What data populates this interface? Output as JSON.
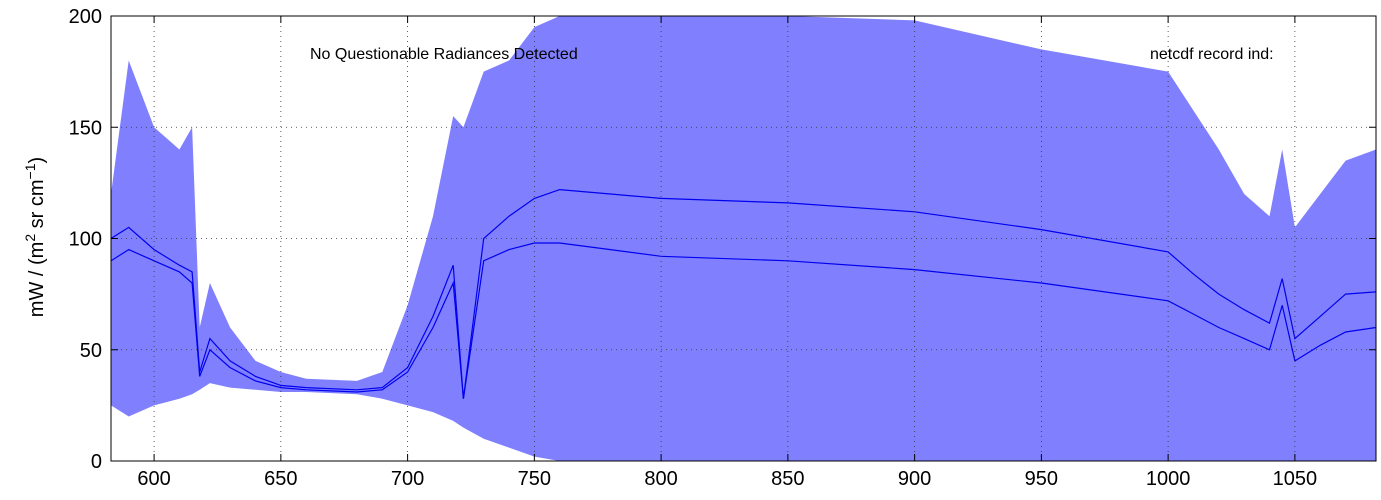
{
  "chart_data": {
    "type": "area",
    "title": "",
    "xlabel": "",
    "ylabel": "mW / (m² sr cm⁻¹)",
    "ylabel_parts": {
      "prefix": "mW / (m",
      "sup1": "2",
      "mid": " sr cm",
      "sup2": "−1",
      "suffix": ")"
    },
    "xlim": [
      583,
      1082
    ],
    "ylim": [
      0,
      200
    ],
    "x_ticks": [
      600,
      650,
      700,
      750,
      800,
      850,
      900,
      950,
      1000,
      1050
    ],
    "y_ticks": [
      0,
      50,
      100,
      150,
      200
    ],
    "grid": true,
    "annotations": {
      "left": "No Questionable Radiances Detected",
      "right": "netcdf record ind:"
    },
    "colors": {
      "band": "#8080ff",
      "line": "#0000ee",
      "grid": "#333333"
    },
    "series": [
      {
        "name": "",
        "kind": "envelope",
        "x": [
          583,
          590,
          600,
          610,
          615,
          618,
          622,
          630,
          640,
          650,
          660,
          680,
          690,
          700,
          710,
          718,
          722,
          730,
          740,
          750,
          760,
          780,
          800,
          850,
          900,
          950,
          1000,
          1020,
          1030,
          1040,
          1045,
          1050,
          1060,
          1070,
          1082
        ],
        "upper": [
          120,
          180,
          150,
          140,
          150,
          60,
          80,
          60,
          45,
          40,
          37,
          36,
          40,
          70,
          110,
          155,
          150,
          175,
          180,
          195,
          200,
          200,
          200,
          200,
          198,
          185,
          175,
          140,
          120,
          110,
          140,
          105,
          120,
          135,
          140
        ],
        "lower": [
          25,
          20,
          25,
          28,
          30,
          32,
          35,
          33,
          32,
          31,
          31,
          30,
          28,
          25,
          22,
          18,
          15,
          10,
          6,
          2,
          0,
          0,
          0,
          0,
          0,
          0,
          0,
          0,
          0,
          0,
          0,
          0,
          0,
          0,
          0
        ]
      },
      {
        "name": "",
        "kind": "line",
        "x": [
          583,
          590,
          600,
          610,
          615,
          618,
          622,
          630,
          640,
          650,
          660,
          680,
          690,
          700,
          710,
          718,
          722,
          730,
          740,
          750,
          760,
          780,
          800,
          850,
          900,
          950,
          1000,
          1010,
          1020,
          1030,
          1040,
          1045,
          1050,
          1060,
          1070,
          1082
        ],
        "y": [
          100,
          105,
          95,
          88,
          85,
          40,
          55,
          45,
          38,
          34,
          33,
          32,
          33,
          42,
          65,
          88,
          28,
          100,
          110,
          118,
          122,
          120,
          118,
          116,
          112,
          104,
          94,
          84,
          75,
          68,
          62,
          82,
          55,
          65,
          75,
          76
        ]
      },
      {
        "name": "",
        "kind": "line",
        "x": [
          583,
          590,
          600,
          610,
          615,
          618,
          622,
          630,
          640,
          650,
          660,
          680,
          690,
          700,
          710,
          718,
          722,
          730,
          740,
          750,
          760,
          780,
          800,
          850,
          900,
          950,
          1000,
          1010,
          1020,
          1030,
          1040,
          1045,
          1050,
          1060,
          1070,
          1082
        ],
        "y": [
          90,
          95,
          90,
          85,
          80,
          38,
          50,
          42,
          36,
          33,
          32,
          31,
          32,
          40,
          60,
          80,
          28,
          90,
          95,
          98,
          98,
          95,
          92,
          90,
          86,
          80,
          72,
          66,
          60,
          55,
          50,
          70,
          45,
          52,
          58,
          60
        ]
      }
    ]
  }
}
